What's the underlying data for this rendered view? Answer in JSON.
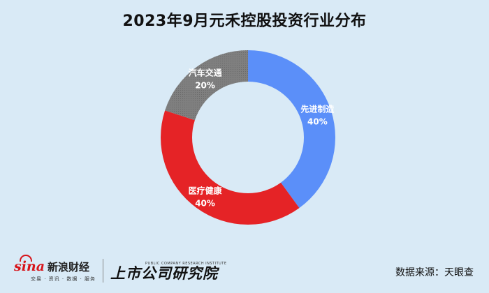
{
  "chart_data": {
    "type": "pie",
    "title": "2023年9月元禾控股投资行业分布",
    "slices": [
      {
        "label": "先进制造",
        "value": 40,
        "value_label": "40%",
        "color": "#5b8ff9"
      },
      {
        "label": "医疗健康",
        "value": 40,
        "value_label": "40%",
        "color": "#e52326"
      },
      {
        "label": "汽车交通",
        "value": 20,
        "value_label": "20%",
        "color": "#7f7f7f"
      }
    ],
    "donut": true
  },
  "footer": {
    "sina_mark": "sina",
    "sina_name": "新浪财经",
    "sina_sub": "交易 · 资讯 · 数据 · 服务",
    "institute_en": "PUBLIC COMPANY RESEARCH INSTITUTE",
    "institute_cn": "上市公司研究院",
    "source": "数据来源：天眼查"
  }
}
